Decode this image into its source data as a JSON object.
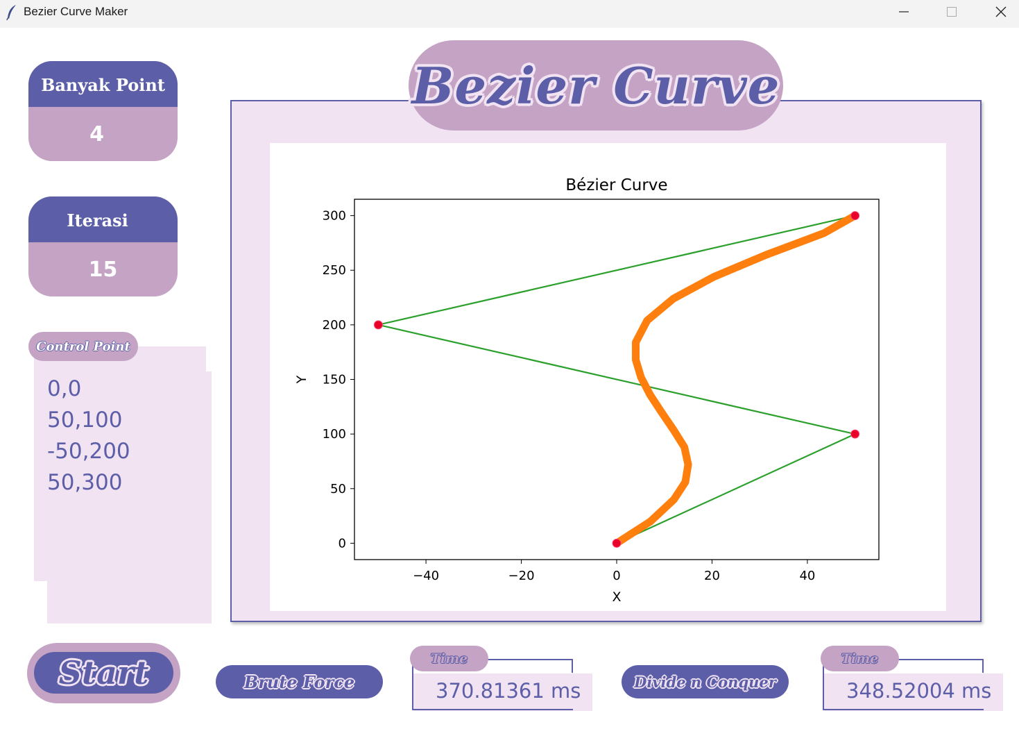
{
  "window": {
    "title": "Bezier Curve Maker",
    "app_icon": "feather-icon",
    "controls": [
      "minimize-icon",
      "maximize-icon",
      "close-icon"
    ]
  },
  "colors": {
    "purple": "#5c5fa8",
    "mauve": "#c5a3c5",
    "lavender": "#f1e3f1",
    "control_line": "#2ca02c",
    "curve": "#ff7f0e",
    "point": "#e8002a"
  },
  "banyak_point": {
    "label": "Banyak Point",
    "value": "4"
  },
  "iterasi": {
    "label": "Iterasi",
    "value": "15"
  },
  "control_point": {
    "label": "Control Point",
    "points": [
      "0,0",
      "50,100",
      "-50,200",
      "50,300"
    ]
  },
  "header": {
    "title": "Bezier Curve"
  },
  "buttons": {
    "start": "Start",
    "brute_force": "Brute Force",
    "divide_conquer": "Divide n Conquer"
  },
  "timing": {
    "label": "Time",
    "brute_force": "370.81361 ms",
    "divide_conquer": "348.52004 ms"
  },
  "chart_data": {
    "type": "line",
    "title": "Bézier Curve",
    "xlabel": "X",
    "ylabel": "Y",
    "xlim": [
      -55,
      55
    ],
    "ylim": [
      -15,
      315
    ],
    "xticks": [
      -40,
      -20,
      0,
      20,
      40
    ],
    "yticks": [
      0,
      50,
      100,
      150,
      200,
      250,
      300
    ],
    "grid": false,
    "series": [
      {
        "role": "control polygon",
        "type": "line",
        "color": "#2ca02c",
        "x": [
          0,
          50,
          -50,
          50
        ],
        "y": [
          0,
          100,
          200,
          300
        ]
      },
      {
        "role": "bezier curve",
        "type": "line",
        "color": "#ff7f0e",
        "x": [
          0,
          7.1,
          12.0,
          14.4,
          15.0,
          14.2,
          11.9,
          9.4,
          7.0,
          5.1,
          4.0,
          4.0,
          6.4,
          11.9,
          20.4,
          31.3,
          43.5,
          50
        ],
        "y": [
          0,
          20.0,
          40.0,
          56.0,
          72.0,
          88.0,
          104.0,
          120.0,
          136.0,
          152.0,
          168.0,
          184.0,
          204.0,
          224.0,
          244.0,
          264.0,
          284.0,
          300
        ]
      },
      {
        "role": "control points",
        "type": "scatter",
        "color": "#e8002a",
        "x": [
          0,
          50,
          -50,
          50
        ],
        "y": [
          0,
          100,
          200,
          300
        ]
      }
    ]
  }
}
